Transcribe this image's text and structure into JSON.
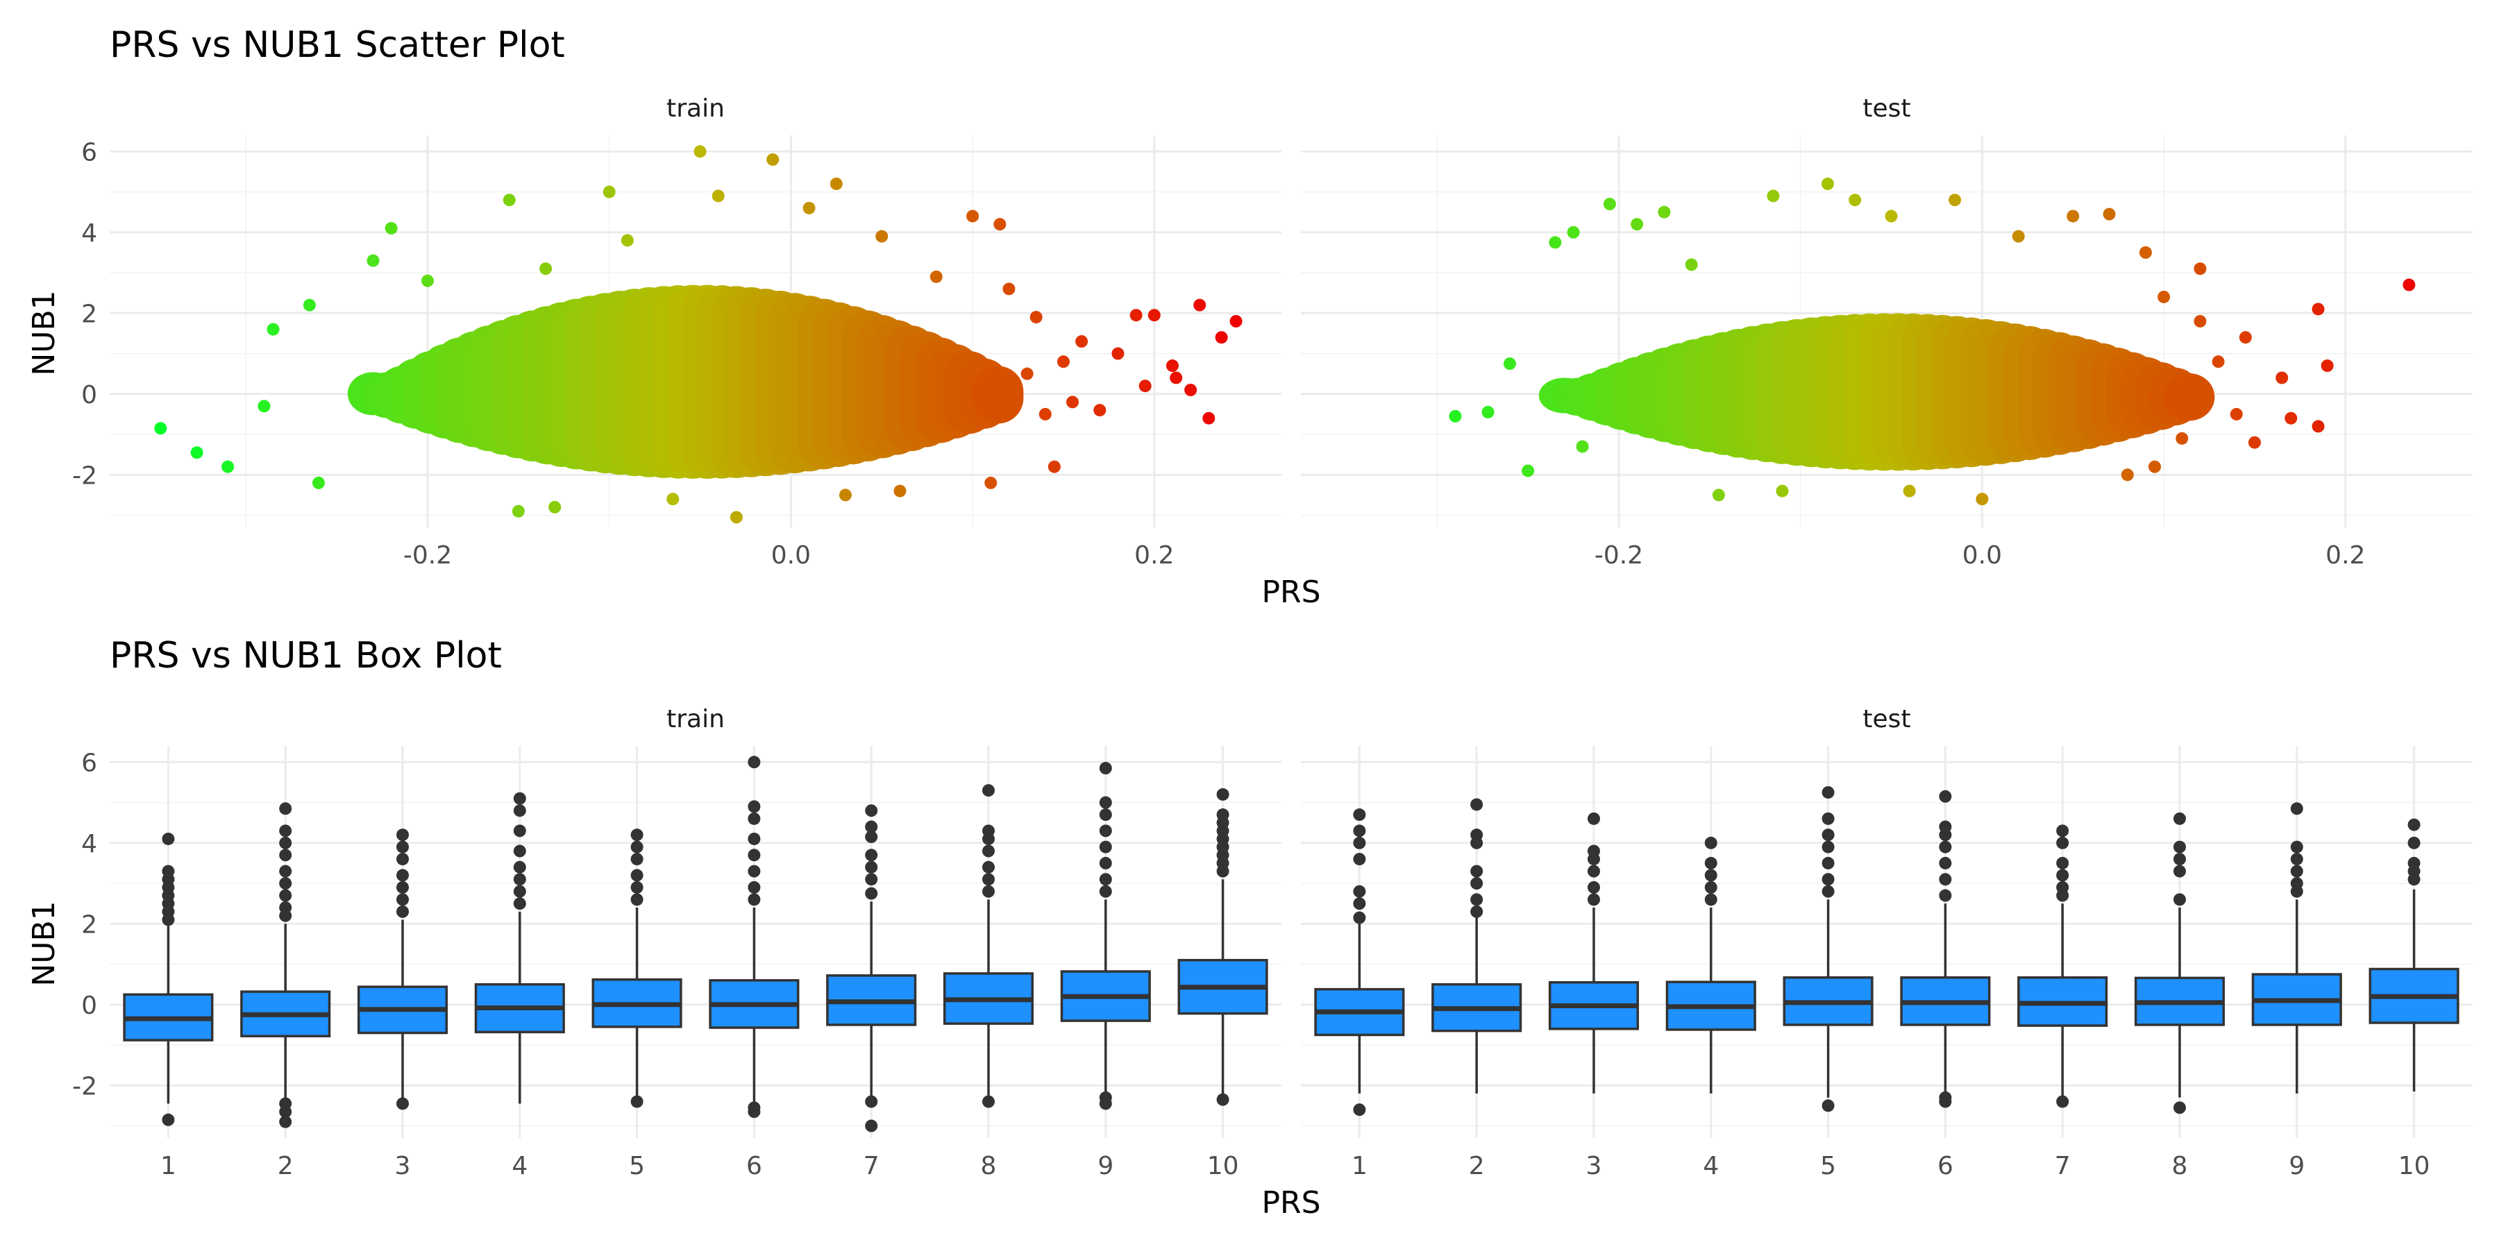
{
  "colors": {
    "low": "#00ff2a",
    "mid": "#b9bb00",
    "high": "#ee0000",
    "box_fill": "#1e90ff",
    "box_stroke": "#333333",
    "outlier": "#333333"
  },
  "chart_data": [
    {
      "type": "scatter",
      "title": "PRS vs NUB1 Scatter Plot",
      "xlabel": "PRS",
      "ylabel": "NUB1",
      "xlim": [
        -0.375,
        0.27
      ],
      "ylim": [
        -3.3,
        6.4
      ],
      "x_ticks": [
        -0.2,
        0.0,
        0.2
      ],
      "x_tick_labels": [
        "-0.2",
        "0.0",
        "0.2"
      ],
      "y_ticks": [
        -2,
        0,
        2,
        4,
        6
      ],
      "y_tick_labels": [
        "-2",
        "0",
        "2",
        "4",
        "6"
      ],
      "grid": true,
      "color_by": "PRS",
      "panels": [
        {
          "name": "train",
          "points": [
            [
              -0.347,
              -0.85
            ],
            [
              -0.327,
              -1.45
            ],
            [
              -0.31,
              -1.8
            ],
            [
              -0.29,
              -0.3
            ],
            [
              -0.285,
              1.6
            ],
            [
              -0.265,
              2.2
            ],
            [
              -0.26,
              -2.2
            ],
            [
              -0.23,
              3.3
            ],
            [
              -0.22,
              4.1
            ],
            [
              -0.2,
              2.8
            ],
            [
              -0.155,
              4.8
            ],
            [
              -0.15,
              -2.9
            ],
            [
              -0.135,
              3.1
            ],
            [
              -0.13,
              -2.8
            ],
            [
              -0.1,
              5.0
            ],
            [
              -0.09,
              3.8
            ],
            [
              -0.065,
              -2.6
            ],
            [
              -0.05,
              6.0
            ],
            [
              -0.04,
              4.9
            ],
            [
              -0.03,
              -3.05
            ],
            [
              -0.01,
              5.8
            ],
            [
              0.01,
              4.6
            ],
            [
              0.025,
              5.2
            ],
            [
              0.03,
              -2.5
            ],
            [
              0.05,
              3.9
            ],
            [
              0.06,
              -2.4
            ],
            [
              0.08,
              2.9
            ],
            [
              0.1,
              4.4
            ],
            [
              0.11,
              -2.2
            ],
            [
              0.115,
              4.2
            ],
            [
              0.12,
              2.6
            ],
            [
              0.135,
              1.9
            ],
            [
              0.145,
              -1.8
            ],
            [
              0.16,
              1.3
            ],
            [
              0.17,
              -0.4
            ],
            [
              0.18,
              1.0
            ],
            [
              0.19,
              1.95
            ],
            [
              0.195,
              0.2
            ],
            [
              0.2,
              1.95
            ],
            [
              0.21,
              0.7
            ],
            [
              0.212,
              0.4
            ],
            [
              0.22,
              0.1
            ],
            [
              0.225,
              2.2
            ],
            [
              0.23,
              -0.6
            ],
            [
              0.237,
              1.4
            ],
            [
              0.245,
              1.8
            ],
            [
              0.13,
              0.5
            ],
            [
              0.14,
              -0.5
            ],
            [
              0.15,
              0.8
            ],
            [
              0.155,
              -0.2
            ]
          ]
        },
        {
          "name": "test",
          "points": [
            [
              -0.29,
              -0.55
            ],
            [
              -0.272,
              -0.45
            ],
            [
              -0.26,
              0.75
            ],
            [
              -0.25,
              -1.9
            ],
            [
              -0.235,
              3.75
            ],
            [
              -0.225,
              4.0
            ],
            [
              -0.22,
              -1.3
            ],
            [
              -0.205,
              4.7
            ],
            [
              -0.19,
              4.2
            ],
            [
              -0.175,
              4.5
            ],
            [
              -0.16,
              3.2
            ],
            [
              -0.145,
              -2.5
            ],
            [
              -0.115,
              4.9
            ],
            [
              -0.11,
              -2.4
            ],
            [
              -0.085,
              5.2
            ],
            [
              -0.07,
              4.8
            ],
            [
              -0.05,
              4.4
            ],
            [
              -0.04,
              -2.4
            ],
            [
              -0.015,
              4.8
            ],
            [
              0.0,
              -2.6
            ],
            [
              0.02,
              3.9
            ],
            [
              0.05,
              4.4
            ],
            [
              0.07,
              4.45
            ],
            [
              0.08,
              -2.0
            ],
            [
              0.09,
              3.5
            ],
            [
              0.095,
              -1.8
            ],
            [
              0.12,
              3.1
            ],
            [
              0.13,
              0.8
            ],
            [
              0.14,
              -0.5
            ],
            [
              0.145,
              1.4
            ],
            [
              0.15,
              -1.2
            ],
            [
              0.165,
              0.4
            ],
            [
              0.17,
              -0.6
            ],
            [
              0.185,
              2.1
            ],
            [
              0.185,
              -0.8
            ],
            [
              0.19,
              0.7
            ],
            [
              0.235,
              2.7
            ],
            [
              0.12,
              1.8
            ],
            [
              0.11,
              -1.1
            ],
            [
              0.1,
              2.4
            ]
          ]
        }
      ]
    },
    {
      "type": "box",
      "title": "PRS vs NUB1 Box Plot",
      "xlabel": "PRS",
      "ylabel": "NUB1",
      "categories": [
        "1",
        "2",
        "3",
        "4",
        "5",
        "6",
        "7",
        "8",
        "9",
        "10"
      ],
      "ylim": [
        -3.3,
        6.4
      ],
      "y_ticks": [
        -2,
        0,
        2,
        4,
        6
      ],
      "y_tick_labels": [
        "-2",
        "0",
        "2",
        "4",
        "6"
      ],
      "grid": true,
      "panels": [
        {
          "name": "train",
          "boxes": [
            {
              "q1": -0.88,
              "median": -0.35,
              "q3": 0.25,
              "lower": -2.45,
              "upper": 1.95,
              "outliers": [
                2.1,
                2.3,
                2.5,
                2.7,
                2.9,
                3.1,
                3.3,
                4.1,
                -2.85
              ]
            },
            {
              "q1": -0.78,
              "median": -0.25,
              "q3": 0.32,
              "lower": -2.3,
              "upper": 2.0,
              "outliers": [
                2.2,
                2.4,
                2.7,
                3.0,
                3.3,
                3.7,
                4.0,
                4.3,
                4.85,
                -2.45,
                -2.65,
                -2.9
              ]
            },
            {
              "q1": -0.7,
              "median": -0.12,
              "q3": 0.44,
              "lower": -2.3,
              "upper": 2.1,
              "outliers": [
                2.3,
                2.6,
                2.9,
                3.2,
                3.6,
                3.9,
                4.2,
                -2.45
              ]
            },
            {
              "q1": -0.68,
              "median": -0.08,
              "q3": 0.5,
              "lower": -2.45,
              "upper": 2.3,
              "outliers": [
                2.5,
                2.8,
                3.1,
                3.4,
                3.8,
                4.3,
                4.8,
                5.1
              ]
            },
            {
              "q1": -0.55,
              "median": 0.0,
              "q3": 0.62,
              "lower": -2.3,
              "upper": 2.4,
              "outliers": [
                2.6,
                2.9,
                3.2,
                3.6,
                3.9,
                4.2,
                -2.4
              ]
            },
            {
              "q1": -0.57,
              "median": 0.0,
              "q3": 0.6,
              "lower": -2.4,
              "upper": 2.4,
              "outliers": [
                2.6,
                2.9,
                3.3,
                3.7,
                4.1,
                4.6,
                4.9,
                6.0,
                -2.55,
                -2.65
              ]
            },
            {
              "q1": -0.5,
              "median": 0.07,
              "q3": 0.72,
              "lower": -2.3,
              "upper": 2.55,
              "outliers": [
                2.75,
                3.1,
                3.4,
                3.7,
                4.15,
                4.4,
                4.8,
                -2.4,
                -3.0
              ]
            },
            {
              "q1": -0.47,
              "median": 0.12,
              "q3": 0.77,
              "lower": -2.3,
              "upper": 2.6,
              "outliers": [
                2.8,
                3.1,
                3.4,
                3.8,
                4.1,
                4.3,
                5.3,
                -2.4
              ]
            },
            {
              "q1": -0.4,
              "median": 0.2,
              "q3": 0.82,
              "lower": -2.2,
              "upper": 2.6,
              "outliers": [
                2.8,
                3.1,
                3.5,
                3.9,
                4.3,
                4.7,
                5.0,
                5.85,
                -2.3,
                -2.45
              ]
            },
            {
              "q1": -0.22,
              "median": 0.43,
              "q3": 1.1,
              "lower": -2.3,
              "upper": 3.1,
              "outliers": [
                3.3,
                3.5,
                3.7,
                3.9,
                4.1,
                4.3,
                4.5,
                4.7,
                5.2,
                -2.35
              ]
            }
          ]
        },
        {
          "name": "test",
          "boxes": [
            {
              "q1": -0.75,
              "median": -0.18,
              "q3": 0.38,
              "lower": -2.2,
              "upper": 2.0,
              "outliers": [
                2.15,
                2.5,
                2.8,
                3.6,
                4.0,
                4.3,
                4.7,
                -2.6
              ]
            },
            {
              "q1": -0.65,
              "median": -0.1,
              "q3": 0.5,
              "lower": -2.2,
              "upper": 2.2,
              "outliers": [
                2.3,
                2.6,
                3.0,
                3.3,
                4.0,
                4.2,
                4.95
              ]
            },
            {
              "q1": -0.6,
              "median": -0.03,
              "q3": 0.55,
              "lower": -2.2,
              "upper": 2.4,
              "outliers": [
                2.6,
                2.9,
                3.3,
                3.6,
                3.8,
                4.6
              ]
            },
            {
              "q1": -0.62,
              "median": -0.05,
              "q3": 0.56,
              "lower": -2.2,
              "upper": 2.4,
              "outliers": [
                2.6,
                2.9,
                3.2,
                3.5,
                4.0
              ]
            },
            {
              "q1": -0.5,
              "median": 0.05,
              "q3": 0.67,
              "lower": -2.3,
              "upper": 2.6,
              "outliers": [
                2.8,
                3.1,
                3.5,
                3.9,
                4.2,
                4.6,
                5.25,
                -2.5
              ]
            },
            {
              "q1": -0.5,
              "median": 0.05,
              "q3": 0.67,
              "lower": -2.2,
              "upper": 2.5,
              "outliers": [
                2.7,
                3.1,
                3.5,
                3.9,
                4.2,
                4.4,
                5.15,
                -2.3,
                -2.4
              ]
            },
            {
              "q1": -0.52,
              "median": 0.03,
              "q3": 0.67,
              "lower": -2.3,
              "upper": 2.5,
              "outliers": [
                2.7,
                2.9,
                3.2,
                3.5,
                4.0,
                4.3,
                -2.4
              ]
            },
            {
              "q1": -0.5,
              "median": 0.05,
              "q3": 0.66,
              "lower": -2.3,
              "upper": 2.4,
              "outliers": [
                2.6,
                3.3,
                3.6,
                3.9,
                4.6,
                -2.55
              ]
            },
            {
              "q1": -0.5,
              "median": 0.1,
              "q3": 0.75,
              "lower": -2.2,
              "upper": 2.6,
              "outliers": [
                2.8,
                3.0,
                3.3,
                3.6,
                3.9,
                4.85
              ]
            },
            {
              "q1": -0.45,
              "median": 0.2,
              "q3": 0.88,
              "lower": -2.15,
              "upper": 2.85,
              "outliers": [
                3.1,
                3.3,
                3.5,
                4.0,
                4.45
              ]
            }
          ]
        }
      ]
    }
  ]
}
